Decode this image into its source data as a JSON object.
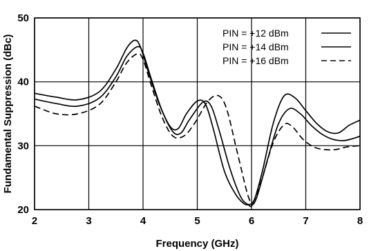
{
  "chart_data": {
    "type": "line",
    "title": "",
    "xlabel": "Frequency (GHz)",
    "ylabel": "Fundamental Suppression (dBc)",
    "xlim": [
      2,
      8
    ],
    "ylim": [
      20,
      50
    ],
    "x_ticks": [
      "2",
      "3",
      "4",
      "5",
      "6",
      "7",
      "8"
    ],
    "y_ticks": [
      "20",
      "30",
      "40",
      "50"
    ],
    "grid": true,
    "legend_position": "top-right",
    "series": [
      {
        "name": "PIN = +12 dBm",
        "style": "solid",
        "x": [
          2.0,
          2.4,
          2.8,
          3.2,
          3.5,
          3.7,
          3.85,
          3.95,
          4.1,
          4.3,
          4.5,
          4.65,
          4.8,
          5.0,
          5.15,
          5.3,
          5.5,
          5.7,
          5.85,
          5.95,
          6.05,
          6.2,
          6.4,
          6.6,
          6.8,
          7.0,
          7.2,
          7.4,
          7.6,
          7.8,
          8.0
        ],
        "y": [
          38.2,
          37.6,
          37.2,
          38.5,
          42.0,
          45.3,
          46.5,
          45.5,
          41.5,
          36.5,
          33.0,
          32.7,
          35.0,
          37.0,
          36.5,
          32.5,
          26.0,
          22.5,
          21.0,
          20.8,
          21.5,
          26.0,
          33.5,
          37.8,
          37.5,
          35.5,
          33.5,
          32.2,
          32.0,
          33.2,
          34.0
        ]
      },
      {
        "name": "PIN = +14 dBm",
        "style": "solid",
        "x": [
          2.0,
          2.4,
          2.8,
          3.2,
          3.5,
          3.7,
          3.9,
          4.0,
          4.15,
          4.35,
          4.55,
          4.7,
          4.85,
          5.1,
          5.25,
          5.4,
          5.6,
          5.8,
          5.95,
          6.0,
          6.1,
          6.3,
          6.5,
          6.7,
          6.9,
          7.1,
          7.3,
          7.5,
          7.7,
          7.9,
          8.0
        ],
        "y": [
          37.3,
          36.6,
          36.2,
          37.5,
          40.8,
          44.0,
          45.5,
          44.5,
          40.5,
          35.5,
          32.2,
          32.0,
          34.0,
          36.8,
          36.3,
          32.5,
          26.5,
          22.0,
          20.7,
          20.6,
          22.0,
          28.0,
          33.5,
          35.8,
          35.0,
          33.2,
          31.8,
          31.0,
          30.8,
          31.2,
          31.5
        ]
      },
      {
        "name": "PIN = +16 dBm",
        "style": "dashed",
        "x": [
          2.0,
          2.4,
          2.8,
          3.2,
          3.5,
          3.7,
          3.9,
          4.0,
          4.15,
          4.35,
          4.55,
          4.75,
          4.95,
          5.2,
          5.4,
          5.55,
          5.75,
          5.95,
          6.05,
          6.2,
          6.4,
          6.6,
          6.75,
          6.95,
          7.15,
          7.35,
          7.55,
          7.75,
          8.0
        ],
        "y": [
          36.2,
          35.0,
          35.0,
          36.5,
          40.0,
          43.0,
          44.4,
          43.5,
          39.5,
          34.5,
          31.5,
          31.5,
          33.5,
          37.0,
          37.8,
          35.5,
          28.5,
          21.8,
          21.5,
          25.0,
          30.5,
          33.3,
          33.0,
          31.0,
          29.8,
          29.4,
          29.4,
          29.8,
          30.0
        ]
      }
    ]
  }
}
